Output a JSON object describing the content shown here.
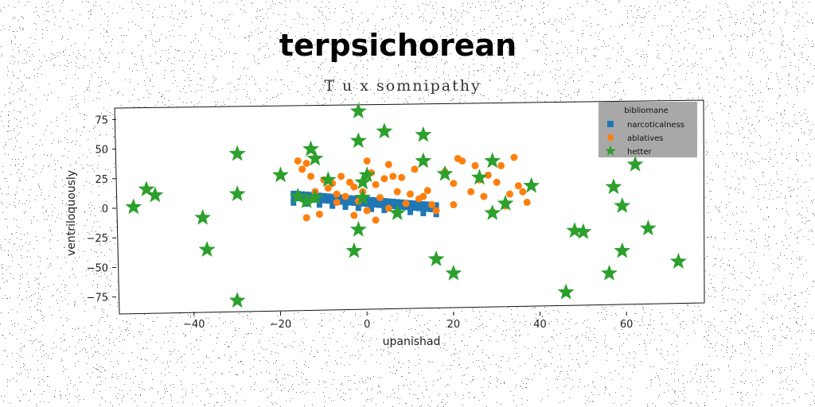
{
  "chart_data": {
    "type": "scatter",
    "title": "terpsichorean",
    "subtitle": "T u x somnipathy",
    "xlabel": "upanishad",
    "ylabel": "ventriloquously",
    "xlim": [
      -58,
      78
    ],
    "ylim": [
      -86,
      86
    ],
    "xticks": [
      -40,
      -20,
      0,
      20,
      40,
      60
    ],
    "yticks": [
      75,
      50,
      25,
      0,
      -25,
      -50,
      -75
    ],
    "xtick_labels": [
      "−40",
      "−20",
      "0",
      "20",
      "40",
      "60"
    ],
    "ytick_labels": [
      "75",
      "50",
      "25",
      "0",
      "−25",
      "−50",
      "−75"
    ],
    "legend": {
      "title": "bibliomane",
      "position": "upper right"
    },
    "series": [
      {
        "name": "narcoticalness",
        "marker": "square",
        "color": "#1f77b4",
        "points": [
          [
            -17,
            12.5
          ],
          [
            -16,
            12.3
          ],
          [
            -15,
            12.0
          ],
          [
            -14,
            11.7
          ],
          [
            -13,
            11.4
          ],
          [
            -12,
            11.1
          ],
          [
            -11,
            10.8
          ],
          [
            -10,
            10.5
          ],
          [
            -9,
            10.2
          ],
          [
            -8,
            9.9
          ],
          [
            -7,
            9.6
          ],
          [
            -6,
            9.3
          ],
          [
            -5,
            9.0
          ],
          [
            -4,
            8.7
          ],
          [
            -3,
            8.4
          ],
          [
            -2,
            8.1
          ],
          [
            -1,
            7.8
          ],
          [
            0,
            7.5
          ],
          [
            1,
            7.2
          ],
          [
            2,
            6.9
          ],
          [
            3,
            6.6
          ],
          [
            4,
            6.3
          ],
          [
            5,
            6.0
          ],
          [
            6,
            5.7
          ],
          [
            7,
            5.4
          ],
          [
            8,
            5.1
          ],
          [
            9,
            4.8
          ],
          [
            10,
            4.5
          ],
          [
            11,
            4.2
          ],
          [
            12,
            3.9
          ],
          [
            13,
            3.6
          ],
          [
            14,
            3.3
          ],
          [
            15,
            3.0
          ],
          [
            16,
            2.7
          ],
          [
            -17,
            8.5
          ],
          [
            -16,
            8.3
          ],
          [
            -15,
            8.0
          ],
          [
            -14,
            7.7
          ],
          [
            -13,
            7.4
          ],
          [
            -12,
            7.1
          ],
          [
            -11,
            6.8
          ],
          [
            -10,
            6.5
          ],
          [
            -9,
            6.2
          ],
          [
            -8,
            5.9
          ],
          [
            -7,
            5.6
          ],
          [
            -6,
            5.3
          ],
          [
            -5,
            5.0
          ],
          [
            -4,
            4.7
          ],
          [
            -3,
            4.4
          ],
          [
            -2,
            4.1
          ],
          [
            -1,
            3.8
          ],
          [
            0,
            3.5
          ],
          [
            1,
            3.2
          ],
          [
            2,
            2.9
          ],
          [
            3,
            2.6
          ],
          [
            4,
            2.3
          ],
          [
            5,
            2.0
          ],
          [
            6,
            1.7
          ],
          [
            7,
            1.4
          ],
          [
            8,
            1.1
          ],
          [
            9,
            0.8
          ],
          [
            10,
            0.5
          ],
          [
            11,
            0.2
          ],
          [
            12,
            -0.1
          ],
          [
            13,
            -0.4
          ],
          [
            14,
            -0.7
          ],
          [
            15,
            -1.0
          ],
          [
            16,
            -1.3
          ],
          [
            -17,
            4.5
          ],
          [
            -14,
            3.7
          ],
          [
            -11,
            2.8
          ],
          [
            -8,
            1.9
          ],
          [
            -5,
            1.0
          ],
          [
            -2,
            0.1
          ],
          [
            1,
            -0.8
          ],
          [
            4,
            -1.7
          ],
          [
            7,
            -2.5
          ],
          [
            10,
            -3.4
          ],
          [
            13,
            -4.3
          ],
          [
            16,
            -5.2
          ]
        ]
      },
      {
        "name": "ablatives",
        "marker": "circle",
        "color": "#ff7f0e",
        "points": [
          [
            -16,
            40
          ],
          [
            -15,
            33
          ],
          [
            -14,
            38
          ],
          [
            -13,
            27
          ],
          [
            -12,
            14
          ],
          [
            -11,
            -5
          ],
          [
            -14,
            -8
          ],
          [
            -10,
            24
          ],
          [
            -9,
            17
          ],
          [
            -8,
            21
          ],
          [
            -7,
            12
          ],
          [
            -6,
            27
          ],
          [
            -5,
            10
          ],
          [
            -4,
            22
          ],
          [
            -3,
            18
          ],
          [
            -2,
            6
          ],
          [
            -1,
            14
          ],
          [
            0,
            40
          ],
          [
            1,
            30
          ],
          [
            2,
            20
          ],
          [
            3,
            9
          ],
          [
            4,
            25
          ],
          [
            5,
            37
          ],
          [
            6,
            27
          ],
          [
            7,
            14
          ],
          [
            8,
            26
          ],
          [
            9,
            4
          ],
          [
            10,
            12
          ],
          [
            11,
            33
          ],
          [
            12,
            8
          ],
          [
            13,
            10
          ],
          [
            14,
            15
          ],
          [
            15,
            3
          ],
          [
            16,
            -2
          ],
          [
            18,
            31
          ],
          [
            20,
            21
          ],
          [
            20,
            3
          ],
          [
            21,
            42
          ],
          [
            22,
            40
          ],
          [
            24,
            14
          ],
          [
            25,
            36
          ],
          [
            26,
            24
          ],
          [
            27,
            10
          ],
          [
            28,
            28
          ],
          [
            29,
            -3
          ],
          [
            30,
            22
          ],
          [
            31,
            36
          ],
          [
            32,
            2
          ],
          [
            33,
            12
          ],
          [
            34,
            43
          ],
          [
            35,
            19
          ],
          [
            36,
            14
          ],
          [
            37,
            5
          ],
          [
            0,
            -2
          ],
          [
            -3,
            -6
          ],
          [
            2,
            -10
          ],
          [
            5,
            0
          ],
          [
            -7,
            5
          ]
        ]
      },
      {
        "name": "hetter",
        "marker": "star",
        "color": "#2ca02c",
        "points": [
          [
            -2,
            82
          ],
          [
            4,
            65
          ],
          [
            13,
            62
          ],
          [
            -2,
            57
          ],
          [
            -13,
            50
          ],
          [
            -30,
            46
          ],
          [
            -12,
            42
          ],
          [
            13,
            40
          ],
          [
            29,
            40
          ],
          [
            62,
            37
          ],
          [
            -20,
            28
          ],
          [
            18,
            29
          ],
          [
            0,
            28
          ],
          [
            26,
            26
          ],
          [
            -9,
            24
          ],
          [
            -1,
            22
          ],
          [
            38,
            19
          ],
          [
            57,
            18
          ],
          [
            -51,
            16
          ],
          [
            -30,
            12
          ],
          [
            -49,
            11
          ],
          [
            -16,
            10
          ],
          [
            -12,
            9
          ],
          [
            -14,
            6
          ],
          [
            -1,
            9
          ],
          [
            32,
            4
          ],
          [
            59,
            2
          ],
          [
            -54,
            1
          ],
          [
            7,
            -4
          ],
          [
            29,
            -4
          ],
          [
            -38,
            -8
          ],
          [
            -2,
            -18
          ],
          [
            48,
            -19
          ],
          [
            50,
            -20
          ],
          [
            65,
            -17
          ],
          [
            -37,
            -35
          ],
          [
            -3,
            -36
          ],
          [
            59,
            -36
          ],
          [
            16,
            -43
          ],
          [
            72,
            -45
          ],
          [
            20,
            -55
          ],
          [
            56,
            -55
          ],
          [
            46,
            -71
          ],
          [
            -30,
            -78
          ]
        ]
      }
    ]
  }
}
